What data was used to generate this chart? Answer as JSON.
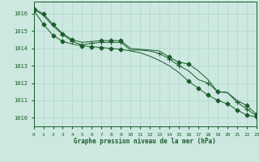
{
  "title": "Graphe pression niveau de la mer (hPa)",
  "background_color": "#cce8e0",
  "line_color": "#1a5c2a",
  "grid_color": "#b0d8cc",
  "xlim": [
    0,
    23
  ],
  "ylim": [
    1009.5,
    1016.7
  ],
  "yticks": [
    1010,
    1011,
    1012,
    1013,
    1014,
    1015,
    1016
  ],
  "xticks": [
    0,
    1,
    2,
    3,
    4,
    5,
    6,
    7,
    8,
    9,
    10,
    11,
    12,
    13,
    14,
    15,
    16,
    17,
    18,
    19,
    20,
    21,
    22,
    23
  ],
  "series1": {
    "x": [
      0,
      1,
      2,
      3,
      4,
      5,
      6,
      7,
      8,
      9,
      10,
      11,
      12,
      13,
      14,
      15,
      16,
      17,
      18,
      19,
      20,
      21,
      22,
      23
    ],
    "y": [
      1016.3,
      1016.0,
      1015.4,
      1014.85,
      1014.5,
      1014.35,
      1014.4,
      1014.45,
      1014.45,
      1014.45,
      1014.0,
      1013.95,
      1013.9,
      1013.85,
      1013.5,
      1013.2,
      1013.1,
      1012.7,
      1012.2,
      1011.5,
      1011.45,
      1011.0,
      1010.7,
      1010.2
    ],
    "marker_x": [
      0,
      1,
      2,
      3,
      4,
      7,
      8,
      9,
      14,
      15,
      16,
      19,
      22,
      23
    ],
    "marker_y": [
      1016.3,
      1016.0,
      1015.4,
      1014.85,
      1014.5,
      1014.45,
      1014.45,
      1014.45,
      1013.5,
      1013.2,
      1013.1,
      1011.5,
      1010.7,
      1010.2
    ]
  },
  "series2": {
    "x": [
      0,
      1,
      2,
      3,
      4,
      5,
      6,
      7,
      8,
      9,
      10,
      11,
      12,
      13,
      14,
      15,
      16,
      17,
      18,
      19,
      20,
      21,
      22,
      23
    ],
    "y": [
      1016.3,
      1015.9,
      1015.3,
      1014.8,
      1014.4,
      1014.2,
      1014.3,
      1014.35,
      1014.35,
      1014.35,
      1013.9,
      1013.9,
      1013.85,
      1013.7,
      1013.4,
      1013.0,
      1012.7,
      1012.2,
      1012.0,
      1011.5,
      1011.45,
      1010.9,
      1010.5,
      1010.1
    ],
    "marker_x": [
      0,
      3,
      4,
      5,
      6,
      7,
      8,
      9,
      13,
      14,
      15,
      18,
      19,
      21,
      22,
      23
    ],
    "marker_y": [
      1016.3,
      1014.8,
      1014.4,
      1014.2,
      1014.3,
      1014.35,
      1014.35,
      1014.35,
      1013.7,
      1013.4,
      1013.0,
      1012.0,
      1011.5,
      1010.9,
      1010.5,
      1010.1
    ]
  },
  "series3": {
    "x": [
      0,
      1,
      2,
      3,
      4,
      5,
      6,
      7,
      8,
      9,
      10,
      11,
      12,
      13,
      14,
      15,
      16,
      17,
      18,
      19,
      20,
      21,
      22,
      23
    ],
    "y": [
      1016.2,
      1015.4,
      1014.75,
      1014.4,
      1014.25,
      1014.15,
      1014.1,
      1014.05,
      1014.0,
      1013.95,
      1013.85,
      1013.75,
      1013.55,
      1013.3,
      1013.0,
      1012.6,
      1012.1,
      1011.7,
      1011.3,
      1011.0,
      1010.8,
      1010.45,
      1010.15,
      1010.05
    ],
    "marker_x": [
      0,
      1,
      2,
      3,
      5,
      6,
      7,
      8,
      9,
      16,
      17,
      18,
      19,
      20,
      21,
      22,
      23
    ],
    "marker_y": [
      1016.2,
      1015.4,
      1014.75,
      1014.4,
      1014.15,
      1014.1,
      1014.05,
      1014.0,
      1013.95,
      1012.1,
      1011.7,
      1011.3,
      1011.0,
      1010.8,
      1010.45,
      1010.15,
      1010.05
    ]
  }
}
